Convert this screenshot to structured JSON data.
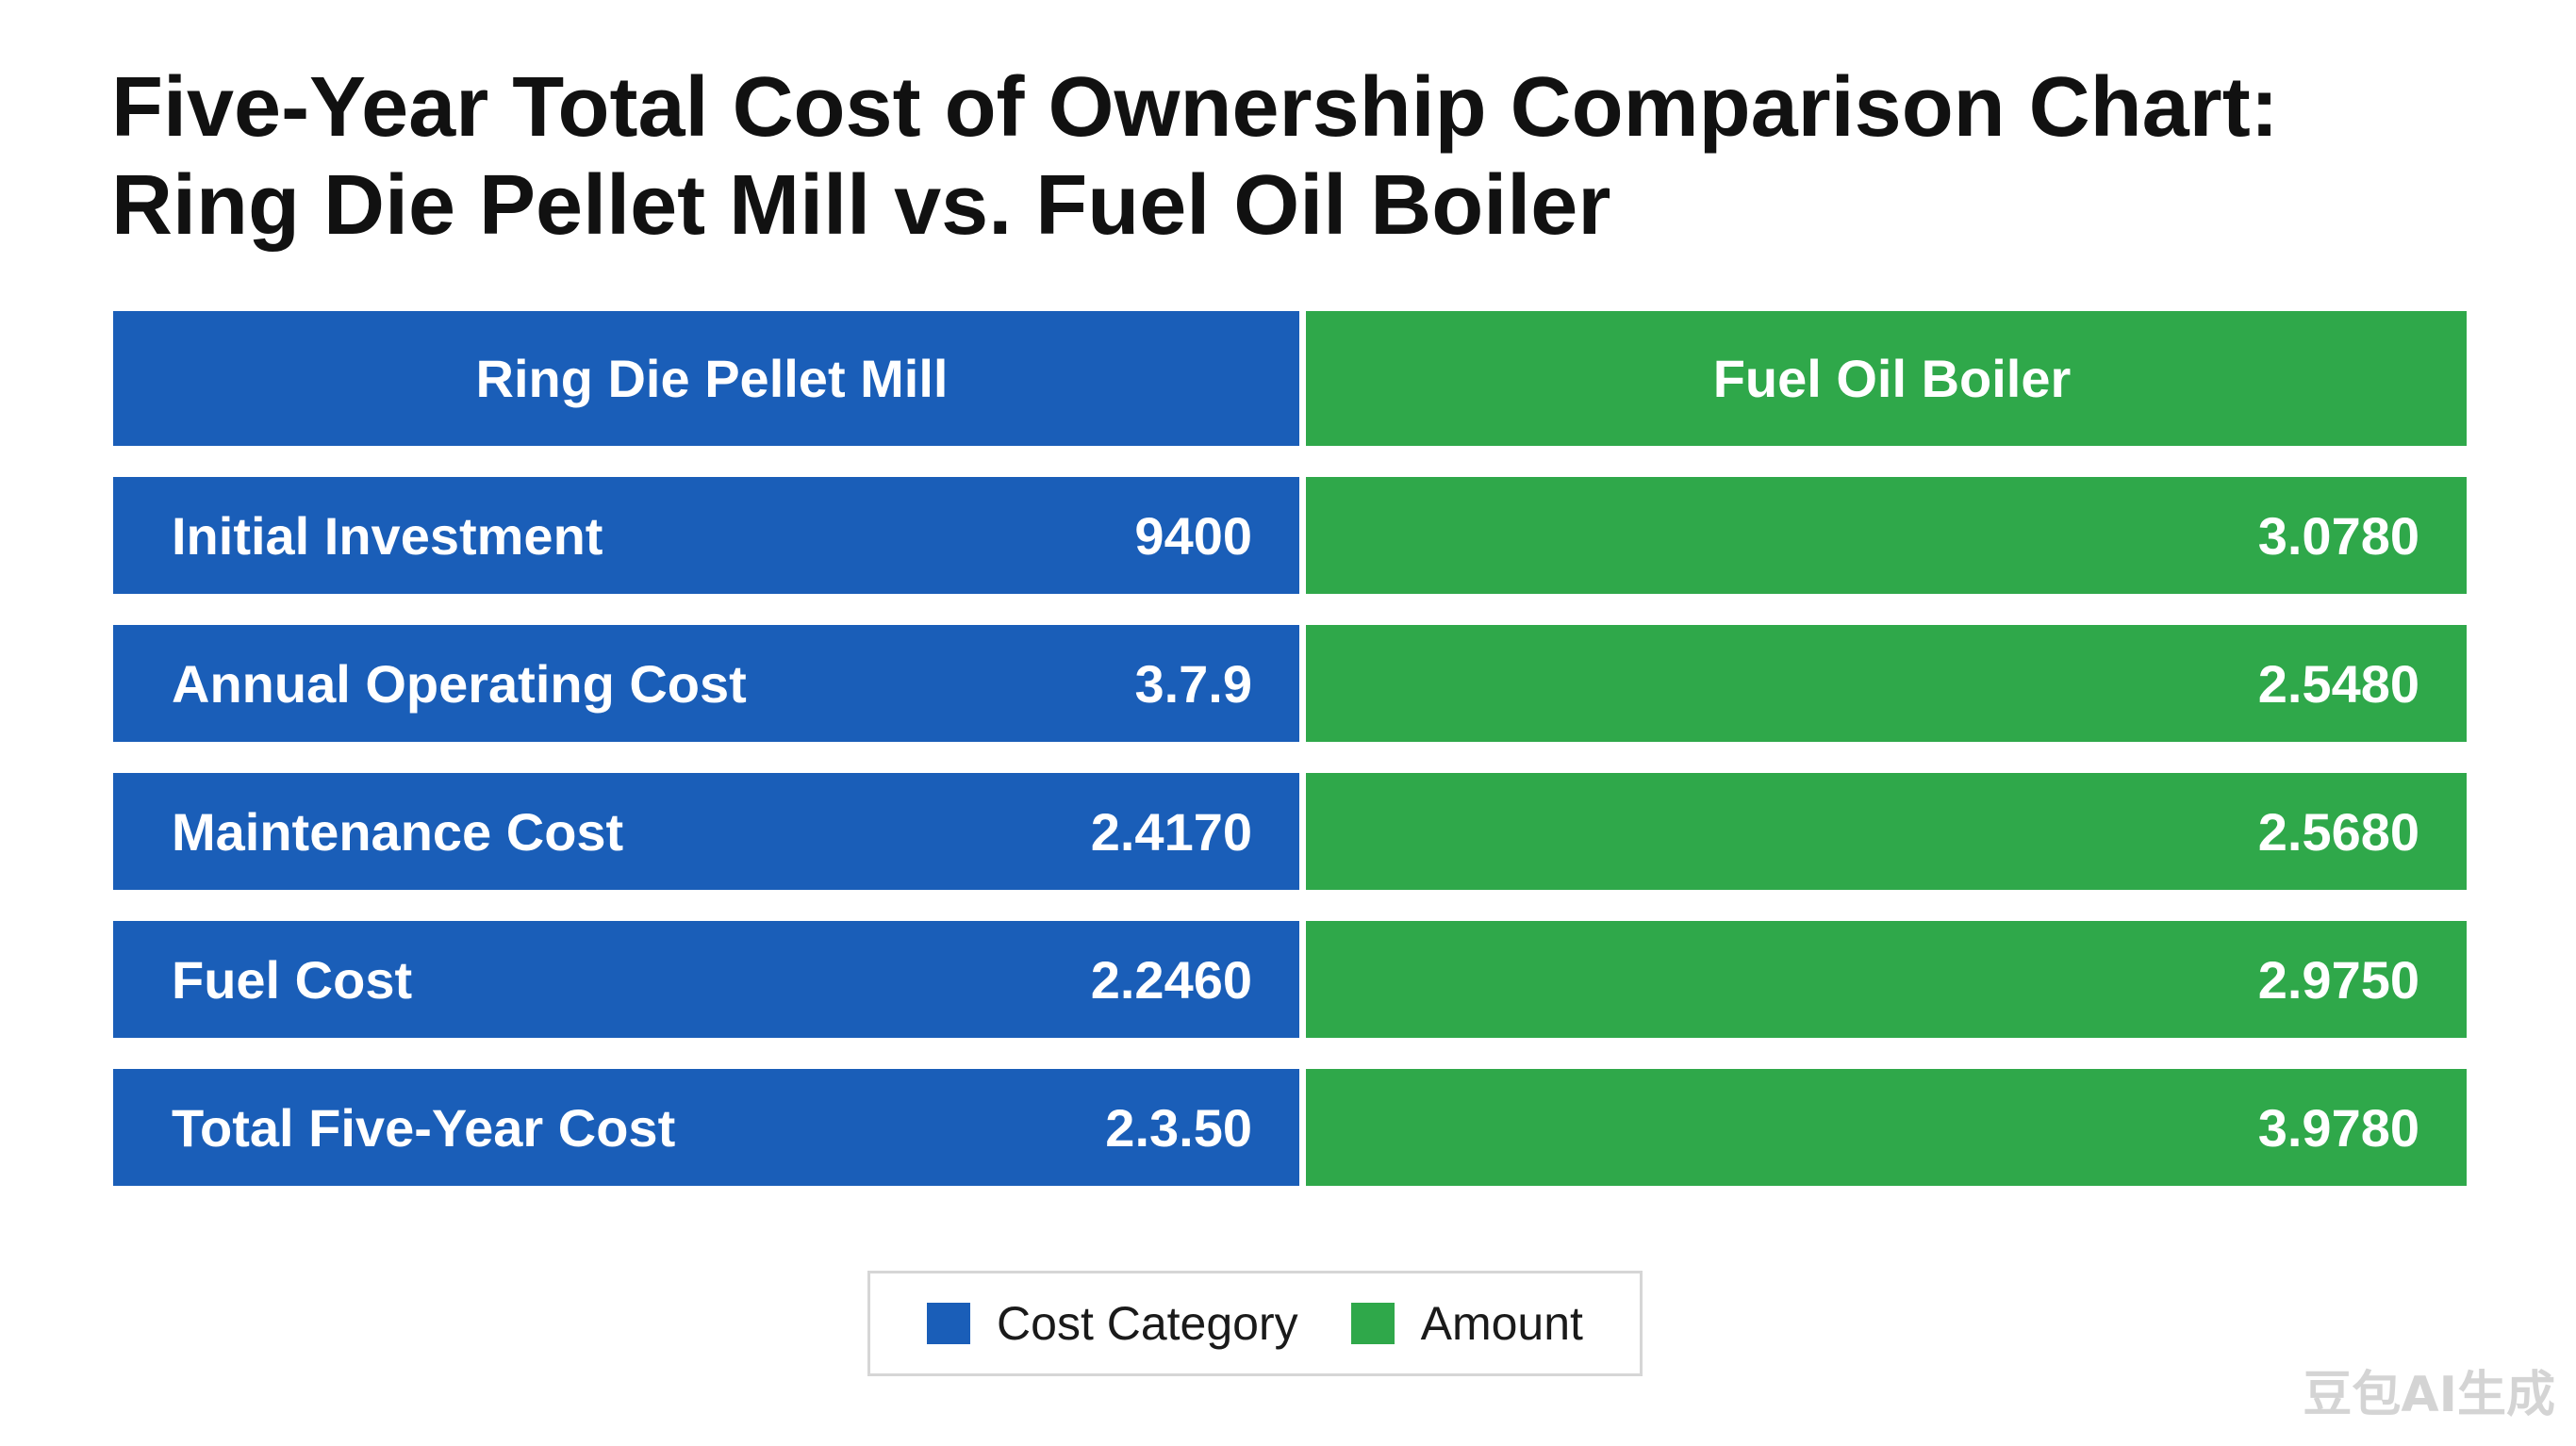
{
  "chart_data": {
    "type": "table",
    "title_line1": "Five-Year Total Cost of Ownership Comparison Chart:",
    "title_line2": "Ring Die Pellet Mill vs. Fuel Oil Boiler",
    "columns": [
      "Ring Die Pellet Mill",
      "Fuel Oil Boiler"
    ],
    "rows": [
      {
        "category": "Initial Investment",
        "values": [
          "9400",
          "3.0780"
        ]
      },
      {
        "category": "Annual Operating Cost",
        "values": [
          "3.7.9",
          "2.5480"
        ]
      },
      {
        "category": "Maintenance Cost",
        "values": [
          "2.4170",
          "2.5680"
        ]
      },
      {
        "category": "Fuel Cost",
        "values": [
          "2.2460",
          "2.9750"
        ]
      },
      {
        "category": "Total Five-Year Cost",
        "values": [
          "2.3.50",
          "3.9780"
        ]
      }
    ],
    "legend": [
      {
        "label": "Cost Category",
        "color": "#1a5eb8"
      },
      {
        "label": "Amount",
        "color": "#2fa84a"
      }
    ],
    "legend_placement": "bottom-center",
    "colors": {
      "pellet_mill": "#1a5eb8",
      "fuel_oil_boiler": "#2fa84a"
    }
  },
  "watermark": "豆包AI生成"
}
